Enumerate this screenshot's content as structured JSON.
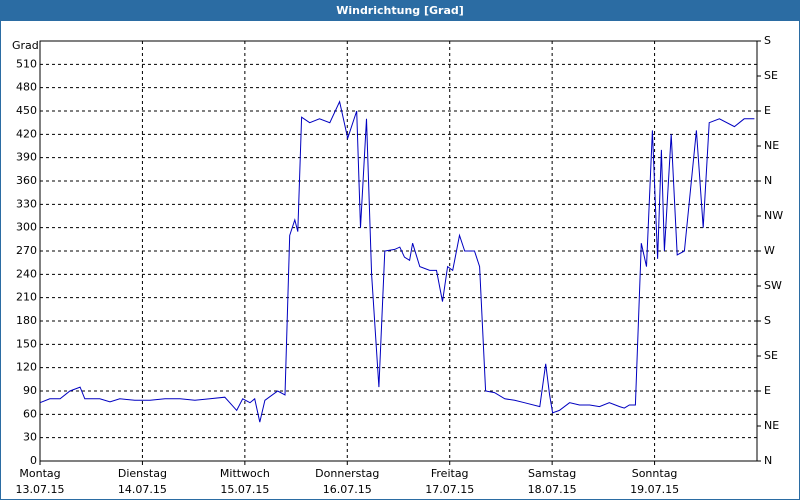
{
  "chart_data": {
    "type": "line",
    "title": "Windrichtung [Grad]",
    "y_label": "Grad",
    "xlim": [
      0,
      168
    ],
    "xticks": [
      {
        "value": 0,
        "label": "Montag"
      },
      {
        "value": 24,
        "label": "Dienstag"
      },
      {
        "value": 48,
        "label": "Mittwoch"
      },
      {
        "value": 72,
        "label": "Donnerstag"
      },
      {
        "value": 96,
        "label": "Freitag"
      },
      {
        "value": 120,
        "label": "Samstag"
      },
      {
        "value": 144,
        "label": "Sonntag"
      }
    ],
    "xtick_dates": [
      "13.07.15",
      "14.07.15",
      "15.07.15",
      "16.07.15",
      "17.07.15",
      "18.07.15",
      "19.07.15"
    ],
    "ylim": [
      0,
      540
    ],
    "yticks": [
      0,
      30,
      60,
      90,
      120,
      150,
      180,
      210,
      240,
      270,
      300,
      330,
      360,
      390,
      420,
      450,
      480,
      510
    ],
    "y2lim": [
      0,
      540
    ],
    "y2ticks": [
      {
        "value": 0,
        "label": "N"
      },
      {
        "value": 45,
        "label": "NE"
      },
      {
        "value": 90,
        "label": "E"
      },
      {
        "value": 135,
        "label": "SE"
      },
      {
        "value": 180,
        "label": "S"
      },
      {
        "value": 225,
        "label": "SW"
      },
      {
        "value": 270,
        "label": "W"
      },
      {
        "value": 315,
        "label": "NW"
      },
      {
        "value": 360,
        "label": "N"
      },
      {
        "value": 405,
        "label": "NE"
      },
      {
        "value": 450,
        "label": "E"
      },
      {
        "value": 495,
        "label": "SE"
      },
      {
        "value": 540,
        "label": "S"
      }
    ],
    "grid": true,
    "series": [
      {
        "color": "#0000c0",
        "x": [
          0,
          2.3,
          4.7,
          7.0,
          9.4,
          10.5,
          14.0,
          16.4,
          18.7,
          22.2,
          25.8,
          29.3,
          32.8,
          36.3,
          39.8,
          43.3,
          46.1,
          47.5,
          49.2,
          50.3,
          51.5,
          52.7,
          55.7,
          57.4,
          58.5,
          59.7,
          60.4,
          61.3,
          63.2,
          65.5,
          67.9,
          70.2,
          72.1,
          74.2,
          75.1,
          76.5,
          77.7,
          79.4,
          80.8,
          83.1,
          84.3,
          85.4,
          86.6,
          87.3,
          89.0,
          91.3,
          92.9,
          94.3,
          95.5,
          96.7,
          98.3,
          99.5,
          101.8,
          103.0,
          104.4,
          106.5,
          108.9,
          111.2,
          113.5,
          117.1,
          118.5,
          119.4,
          120.1,
          121.7,
          124.1,
          126.4,
          128.8,
          131.1,
          133.4,
          135.8,
          136.9,
          138.1,
          139.5,
          140.9,
          142.1,
          143.5,
          144.7,
          145.6,
          146.3,
          147.9,
          149.3,
          151.0,
          153.8,
          155.4,
          156.8,
          159.2,
          162.7,
          165.0,
          167.4
        ],
        "values": [
          75,
          80,
          80,
          90,
          95,
          80,
          80,
          76,
          80,
          78,
          78,
          80,
          80,
          78,
          80,
          82,
          65,
          80,
          75,
          80,
          50,
          78,
          90,
          85,
          290,
          310,
          295,
          442,
          435,
          440,
          435,
          462,
          415,
          450,
          300,
          440,
          240,
          95,
          270,
          272,
          275,
          262,
          258,
          280,
          250,
          245,
          245,
          205,
          250,
          245,
          290,
          270,
          270,
          250,
          90,
          88,
          80,
          78,
          75,
          70,
          125,
          85,
          62,
          65,
          75,
          72,
          72,
          70,
          75,
          70,
          68,
          72,
          72,
          280,
          250,
          425,
          260,
          400,
          270,
          420,
          265,
          270,
          425,
          300,
          435,
          440,
          430,
          440,
          440
        ]
      }
    ]
  }
}
